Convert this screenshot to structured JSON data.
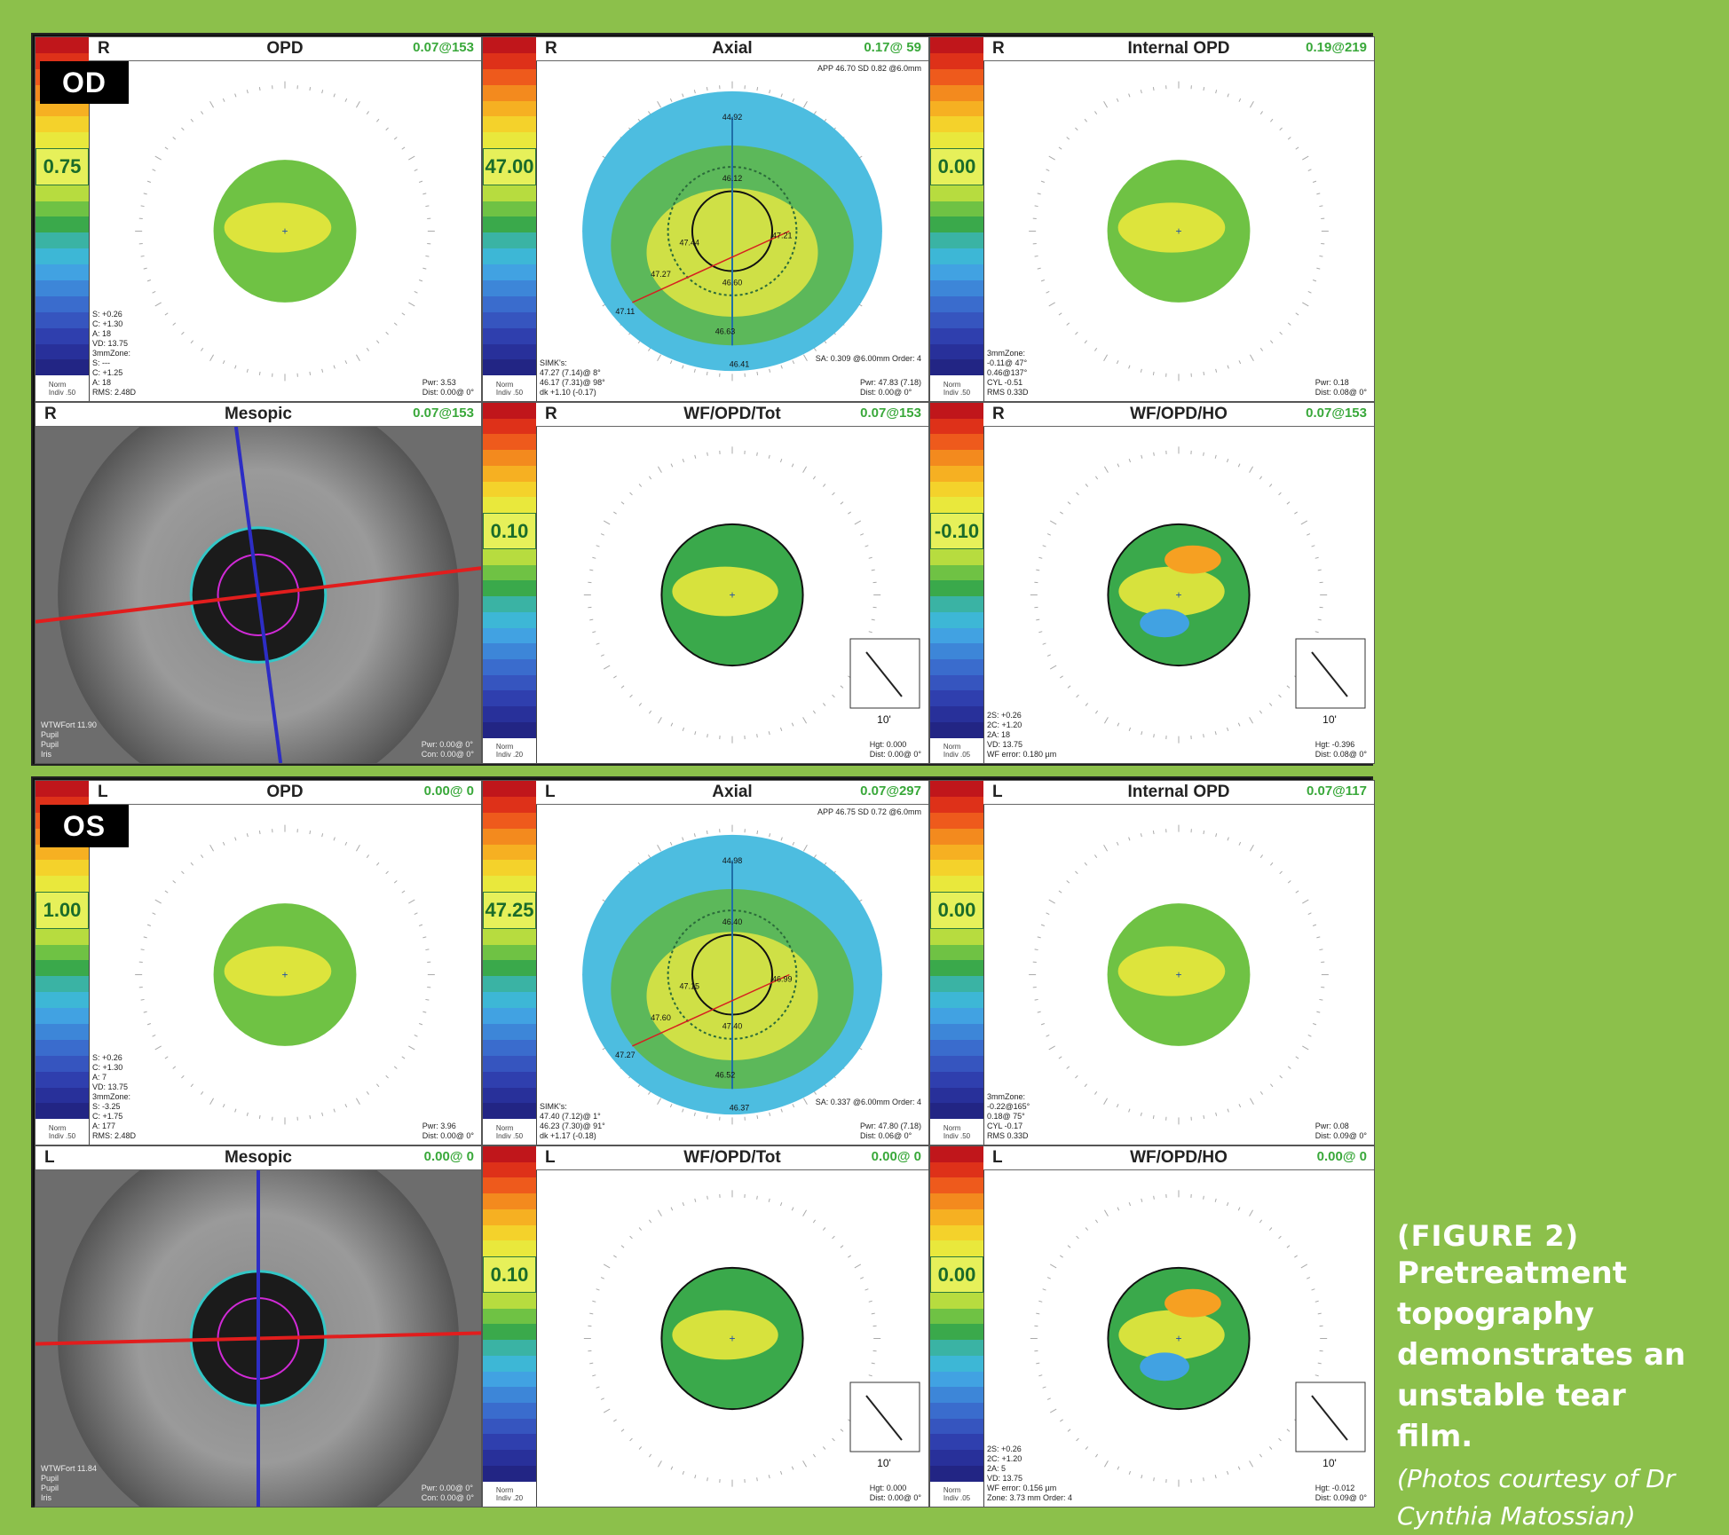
{
  "od": {
    "label": "OD",
    "panels": [
      {
        "side": "R",
        "name": "OPD",
        "value": "0.07@153",
        "scale": "0.75",
        "stats": "S: +0.26\nC: +1.30\nA: 18\nVD: 13.75\n3mmZone:\nS: ---\nC: +1.25\nA: 18\nRMS: 2.48D",
        "footer": "Pwr: 3.53\nDist: 0.00@ 0°",
        "norm": "Norm\nIndiv .50"
      },
      {
        "side": "R",
        "name": "Axial",
        "value": "0.17@ 59",
        "scale": "47.00",
        "stats": "SIMK's:\n47.27 (7.14)@ 8°\n46.17 (7.31)@ 98°\ndk +1.10 (-0.17)",
        "footer": "Pwr: 47.83 (7.18)\nDist: 0.00@ 0°",
        "header_note": "APP 46.70 SD 0.82 @6.0mm",
        "sa": "SA: 0.309 @6.00mm Order: 4",
        "norm": "Norm\nIndiv .50",
        "kvals": [
          "44.92",
          "46.12",
          "47.44",
          "47.27",
          "47.11",
          "46.60",
          "46.63",
          "46.41",
          "47.21"
        ]
      },
      {
        "side": "R",
        "name": "Internal OPD",
        "value": "0.19@219",
        "scale": "0.00",
        "stats": "3mmZone:\n-0.11@ 47°\n0.46@137°\nCYL -0.51\nRMS 0.33D",
        "footer": "Pwr: 0.18\nDist: 0.08@ 0°",
        "norm": "Norm\nIndiv .50"
      },
      {
        "side": "R",
        "name": "Mesopic",
        "value": "0.07@153",
        "stats": "WTWFort 11.90\nPupil\nPupil\nIris",
        "footer": "Pwr: 0.00@ 0°\nCon: 0.00@ 0°"
      },
      {
        "side": "R",
        "name": "WF/OPD/Tot",
        "value": "0.07@153",
        "scale": "0.10",
        "footer": "Hgt: 0.000\nDist: 0.00@ 0°",
        "psf": "10'",
        "norm": "Norm\nIndiv .20"
      },
      {
        "side": "R",
        "name": "WF/OPD/HO",
        "value": "0.07@153",
        "scale": "-0.10",
        "stats": "2S: +0.26\n2C: +1.20\n2A: 18\nVD: 13.75\nWF error: 0.180 µm",
        "footer": "Hgt: -0.396\nDist: 0.08@ 0°",
        "psf": "10'",
        "norm": "Norm\nIndiv .05"
      }
    ]
  },
  "os": {
    "label": "OS",
    "panels": [
      {
        "side": "L",
        "name": "OPD",
        "value": "0.00@ 0",
        "scale": "1.00",
        "stats": "S: +0.26\nC: +1.30\nA: 7\nVD: 13.75\n3mmZone:\nS: -3.25\nC: +1.75\nA: 177\nRMS: 2.48D",
        "footer": "Pwr: 3.96\nDist: 0.00@ 0°",
        "norm": "Norm\nIndiv .50"
      },
      {
        "side": "L",
        "name": "Axial",
        "value": "0.07@297",
        "scale": "47.25",
        "stats": "SIMK's:\n47.40 (7.12)@ 1°\n46.23 (7.30)@ 91°\ndk +1.17 (-0.18)",
        "footer": "Pwr: 47.80 (7.18)\nDist: 0.06@ 0°",
        "header_note": "APP 46.75 SD 0.72 @6.0mm",
        "sa": "SA: 0.337 @6.00mm Order: 4",
        "norm": "Norm\nIndiv .50",
        "kvals": [
          "44.98",
          "46.40",
          "47.15",
          "47.60",
          "47.27",
          "47.40",
          "46.52",
          "46.37",
          "46.99"
        ]
      },
      {
        "side": "L",
        "name": "Internal OPD",
        "value": "0.07@117",
        "scale": "0.00",
        "stats": "3mmZone:\n-0.22@165°\n0.18@ 75°\nCYL -0.17\nRMS 0.33D",
        "footer": "Pwr: 0.08\nDist: 0.09@ 0°",
        "norm": "Norm\nIndiv .50"
      },
      {
        "side": "L",
        "name": "Mesopic",
        "value": "0.00@ 0",
        "stats": "WTWFort 11.84\nPupil\nPupil\nIris",
        "footer": "Pwr: 0.00@ 0°\nCon: 0.00@ 0°"
      },
      {
        "side": "L",
        "name": "WF/OPD/Tot",
        "value": "0.00@ 0",
        "scale": "0.10",
        "footer": "Hgt: 0.000\nDist: 0.00@ 0°",
        "psf": "10'",
        "norm": "Norm\nIndiv .20"
      },
      {
        "side": "L",
        "name": "WF/OPD/HO",
        "value": "0.00@ 0",
        "scale": "0.00",
        "stats": "2S: +0.26\n2C: +1.20\n2A: 5\nVD: 13.75\nWF error: 0.156 µm\nZone: 3.73 mm Order: 4",
        "footer": "Hgt: -0.012\nDist: 0.09@ 0°",
        "psf": "10'",
        "norm": "Norm\nIndiv .05"
      }
    ]
  },
  "caption": {
    "figure": "(FIGURE 2)",
    "text": "Pretreatment topography demonstrates an unstable tear film.",
    "credit": "(Photos courtesy of Dr Cynthia Matossian)"
  },
  "colors": {
    "background": "#8cc04b",
    "accent_value": "#39a83a"
  }
}
